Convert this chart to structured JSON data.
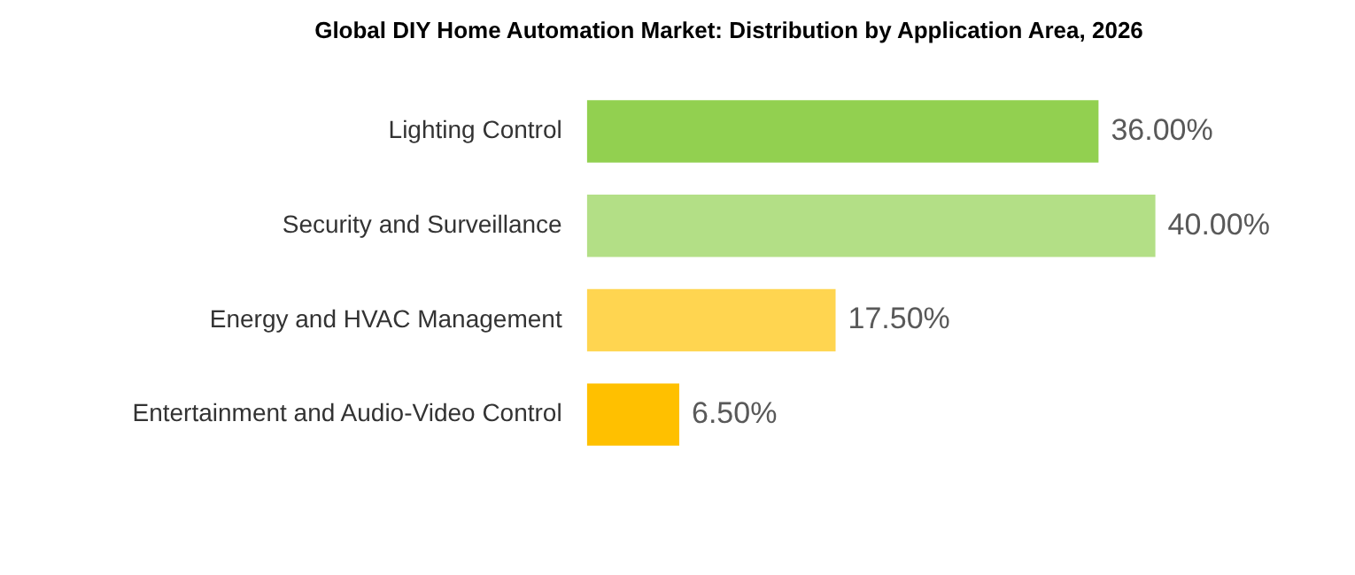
{
  "chart_data": {
    "type": "bar",
    "orientation": "horizontal",
    "tick_labels": "y",
    "title": "Global DIY Home Automation Market: Distribution by Application Area, 2026",
    "categories": [
      "Lighting Control",
      "Security and Surveillance",
      "Energy and HVAC Management",
      "Entertainment and Audio-Video Control"
    ],
    "values": [
      36,
      40,
      17.5,
      6.5
    ],
    "colors": [
      "#92d050",
      "#b3df86",
      "#ffd550",
      "#ffc000"
    ],
    "value_labels": [
      "36.00%",
      "40.00%",
      "17.50%",
      "6.50%"
    ],
    "legend": false
  }
}
